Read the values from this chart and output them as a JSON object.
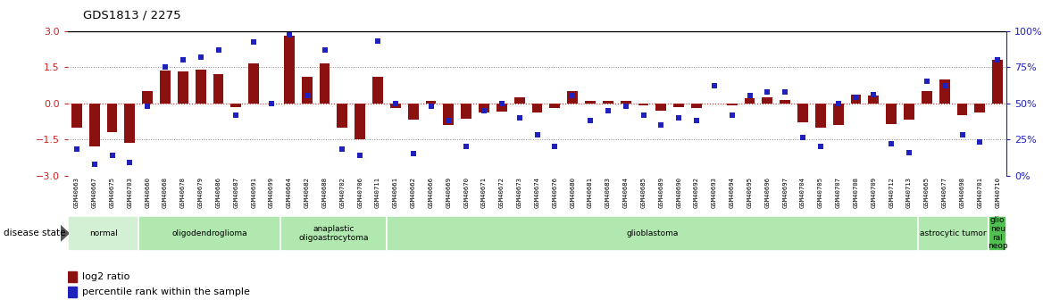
{
  "title": "GDS1813 / 2275",
  "samples": [
    "GSM40663",
    "GSM40667",
    "GSM40675",
    "GSM40703",
    "GSM40660",
    "GSM40668",
    "GSM40678",
    "GSM40679",
    "GSM40686",
    "GSM40687",
    "GSM40691",
    "GSM40699",
    "GSM40664",
    "GSM40682",
    "GSM40688",
    "GSM40702",
    "GSM40706",
    "GSM40711",
    "GSM40661",
    "GSM40662",
    "GSM40666",
    "GSM40669",
    "GSM40670",
    "GSM40671",
    "GSM40672",
    "GSM40673",
    "GSM40674",
    "GSM40676",
    "GSM40680",
    "GSM40681",
    "GSM40683",
    "GSM40684",
    "GSM40685",
    "GSM40689",
    "GSM40690",
    "GSM40692",
    "GSM40693",
    "GSM40694",
    "GSM40695",
    "GSM40696",
    "GSM40697",
    "GSM40704",
    "GSM40705",
    "GSM40707",
    "GSM40708",
    "GSM40709",
    "GSM40712",
    "GSM40713",
    "GSM40665",
    "GSM40677",
    "GSM40698",
    "GSM40701",
    "GSM40710"
  ],
  "log2_ratio": [
    -1.0,
    -1.8,
    -1.2,
    -1.65,
    0.5,
    1.35,
    1.3,
    1.4,
    1.2,
    -0.15,
    1.65,
    0.0,
    2.8,
    1.1,
    1.65,
    -1.0,
    -1.5,
    1.1,
    -0.2,
    -0.7,
    0.1,
    -0.9,
    -0.65,
    -0.4,
    -0.35,
    0.25,
    -0.4,
    -0.2,
    0.5,
    0.1,
    0.1,
    0.1,
    -0.1,
    -0.3,
    -0.15,
    -0.2,
    0.0,
    -0.1,
    0.2,
    0.25,
    0.15,
    -0.8,
    -1.0,
    -0.9,
    0.35,
    0.3,
    -0.85,
    -0.7,
    0.5,
    1.0,
    -0.5,
    -0.4,
    1.8
  ],
  "percentile": [
    18,
    8,
    14,
    9,
    48,
    75,
    80,
    82,
    87,
    42,
    92,
    50,
    97,
    55,
    87,
    18,
    14,
    93,
    50,
    15,
    48,
    38,
    20,
    45,
    50,
    40,
    28,
    20,
    55,
    38,
    45,
    48,
    42,
    35,
    40,
    38,
    62,
    42,
    55,
    58,
    58,
    26,
    20,
    50,
    54,
    56,
    22,
    16,
    65,
    62,
    28,
    23,
    80
  ],
  "disease_groups": [
    {
      "label": "normal",
      "start": 0,
      "end": 4,
      "color": "#d4f0d4"
    },
    {
      "label": "oligodendroglioma",
      "start": 4,
      "end": 12,
      "color": "#b0e8b0"
    },
    {
      "label": "anaplastic\noligoastrocytoma",
      "start": 12,
      "end": 18,
      "color": "#b0e8b0"
    },
    {
      "label": "glioblastoma",
      "start": 18,
      "end": 48,
      "color": "#b0e8b0"
    },
    {
      "label": "astrocytic tumor",
      "start": 48,
      "end": 52,
      "color": "#b0e8b0"
    },
    {
      "label": "glio\nneu\nral\nneop",
      "start": 52,
      "end": 53,
      "color": "#50c050"
    }
  ],
  "bar_color": "#8b1010",
  "dot_color": "#2020bb",
  "zero_line_color": "#cc2222",
  "right_axis_color": "#2020bb",
  "ylim_left": [
    -3,
    3
  ],
  "ylim_right": [
    0,
    100
  ],
  "yticks_left": [
    -3,
    -1.5,
    0,
    1.5,
    3
  ],
  "yticks_right": [
    0,
    25,
    50,
    75,
    100
  ]
}
